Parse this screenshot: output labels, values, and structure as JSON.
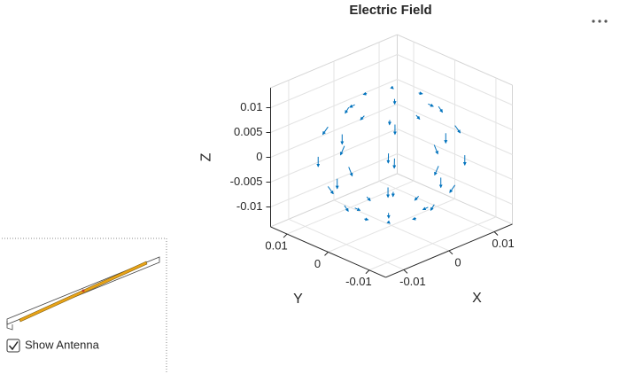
{
  "chart_data": {
    "type": "quiver3",
    "title": "Electric Field",
    "xlabel": "X",
    "ylabel": "Y",
    "zlabel": "Z",
    "color": "#0072bd",
    "grid": true,
    "xlim": [
      -0.014,
      0.014
    ],
    "ylim": [
      -0.014,
      0.014
    ],
    "zlim": [
      -0.014,
      0.014
    ],
    "xticks": [
      -0.01,
      0,
      0.01
    ],
    "yticks": [
      -0.01,
      0,
      0.01
    ],
    "zticks": [
      -0.01,
      -0.005,
      0,
      0.005,
      0.01
    ],
    "x": [
      0.006,
      0.00424,
      0,
      -0.00424,
      -0.006,
      -0.00424,
      0,
      0.00424,
      0.0104,
      0.00735,
      0,
      -0.00735,
      -0.0104,
      -0.00735,
      0,
      0.00735,
      0.012,
      0.00849,
      0,
      -0.00849,
      -0.012,
      -0.00849,
      0,
      0.00849,
      0.0104,
      0.00735,
      0,
      -0.00735,
      -0.0104,
      -0.00735,
      0,
      0.00735,
      0.006,
      0.00424,
      0,
      -0.00424,
      -0.006,
      -0.00424,
      0,
      0.00424
    ],
    "y": [
      0,
      0.00424,
      0.006,
      0.00424,
      0,
      -0.00424,
      -0.006,
      -0.00424,
      0,
      0.00735,
      0.0104,
      0.00735,
      0,
      -0.00735,
      -0.0104,
      -0.00735,
      0,
      0.00849,
      0.012,
      0.00849,
      0,
      -0.00849,
      -0.012,
      -0.00849,
      0,
      0.00735,
      0.0104,
      0.00735,
      0,
      -0.00735,
      -0.0104,
      -0.00735,
      0,
      0.00424,
      0.006,
      0.00424,
      0,
      -0.00424,
      -0.006,
      -0.00424
    ],
    "z": [
      0.0104,
      0.0104,
      0.0104,
      0.0104,
      0.0104,
      0.0104,
      0.0104,
      0.0104,
      0.006,
      0.006,
      0.006,
      0.006,
      0.006,
      0.006,
      0.006,
      0.006,
      0,
      0,
      0,
      0,
      0,
      0,
      0,
      0,
      -0.006,
      -0.006,
      -0.006,
      -0.006,
      -0.006,
      -0.006,
      -0.006,
      -0.006,
      -0.0104,
      -0.0104,
      -0.0104,
      -0.0104,
      -0.0104,
      -0.0104,
      -0.0104,
      -0.0104
    ],
    "u": [
      0.000866,
      0.000612,
      0,
      -0.000612,
      -0.000866,
      -0.000612,
      0,
      0.000612,
      0.000866,
      0.000612,
      0,
      -0.000612,
      -0.000866,
      -0.000612,
      0,
      0.000612,
      0,
      0,
      0,
      0,
      0,
      0,
      0,
      0,
      -0.000866,
      -0.000612,
      0,
      0.000612,
      0.000866,
      0.000612,
      0,
      -0.000612,
      -0.000866,
      -0.000612,
      0,
      0.000612,
      0.000866,
      0.000612,
      0,
      -0.000612
    ],
    "v": [
      0,
      0.000612,
      0.000866,
      0.000612,
      0,
      -0.000612,
      -0.000866,
      -0.000612,
      0,
      0.000612,
      0.000866,
      0.000612,
      0,
      -0.000612,
      -0.000866,
      -0.000612,
      0,
      0,
      0,
      0,
      0,
      0,
      0,
      0,
      0,
      -0.000612,
      -0.000866,
      -0.000612,
      0,
      0.000612,
      0.000866,
      0.000612,
      0,
      -0.000612,
      -0.000866,
      -0.000612,
      0,
      0.000612,
      0.000866,
      0.000612
    ],
    "w": [
      -0.0005,
      -0.0005,
      -0.0005,
      -0.0005,
      -0.0005,
      -0.0005,
      -0.0005,
      -0.0005,
      -0.0015,
      -0.0015,
      -0.0015,
      -0.0015,
      -0.0015,
      -0.0015,
      -0.0015,
      -0.0015,
      -0.002,
      -0.002,
      -0.002,
      -0.002,
      -0.002,
      -0.002,
      -0.002,
      -0.002,
      -0.0015,
      -0.0015,
      -0.0015,
      -0.0015,
      -0.0015,
      -0.0015,
      -0.0015,
      -0.0015,
      -0.0005,
      -0.0005,
      -0.0005,
      -0.0005,
      -0.0005,
      -0.0005,
      -0.0005,
      -0.0005
    ]
  },
  "controls": {
    "checkbox": {
      "label": "Show Antenna",
      "checked": true
    }
  }
}
